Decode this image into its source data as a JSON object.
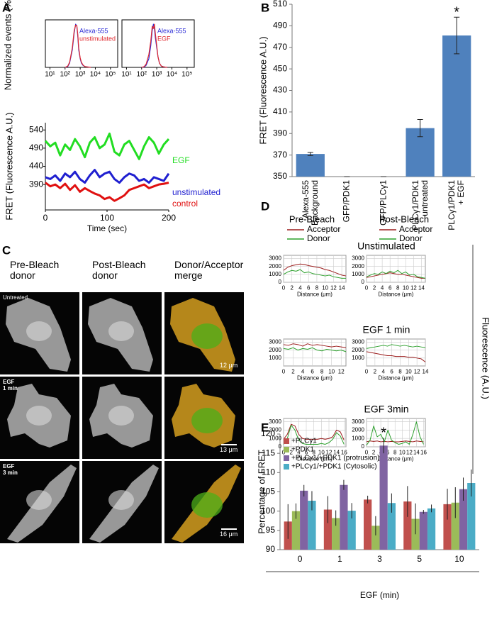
{
  "panel_labels": [
    "A",
    "B",
    "C",
    "D",
    "E"
  ],
  "panel_c": {
    "columns": [
      "Pre-Bleach\ndonor",
      "Post-Bleach\ndonor",
      "Donor/Acceptor\nmerge"
    ],
    "rows": [
      {
        "label": "Untreated",
        "scale_bar": "12 μm"
      },
      {
        "label": "EGF\n1 min",
        "scale_bar": "13 μm"
      },
      {
        "label": "EGF\n3 min",
        "scale_bar": "16 μm"
      }
    ]
  },
  "panel_d_ylabel": "Fluorescence (A.U.)",
  "chart_data": [
    {
      "type": "line",
      "ylabel": "Normalized events (%)",
      "xscale": "log",
      "x": [
        100,
        150,
        200,
        300,
        400,
        500,
        600,
        700,
        800,
        1000,
        1200,
        1500,
        2000,
        3000,
        5000
      ],
      "xlim": [
        5,
        300000
      ],
      "xticks": [
        {
          "value": 10,
          "label": "10¹"
        },
        {
          "value": 100,
          "label": "10²"
        },
        {
          "value": 1000,
          "label": "10³"
        },
        {
          "value": 10000,
          "label": "10⁴"
        },
        {
          "value": 100000,
          "label": "10⁵"
        }
      ],
      "ylim": [
        0,
        110
      ],
      "series": [
        {
          "name": "Alexa-555",
          "color": "#2b2bd6",
          "values": [
            0,
            2,
            10,
            40,
            80,
            100,
            95,
            70,
            40,
            20,
            10,
            5,
            2,
            1,
            0
          ]
        },
        {
          "name": "unstimulated",
          "color": "#e0282e",
          "values": [
            0,
            3,
            12,
            45,
            85,
            98,
            97,
            75,
            45,
            22,
            12,
            6,
            2,
            1,
            0
          ]
        }
      ]
    },
    {
      "type": "line",
      "xscale": "log",
      "x": [
        100,
        150,
        200,
        300,
        400,
        500,
        600,
        700,
        800,
        1000,
        1200,
        1500,
        2000,
        3000,
        5000
      ],
      "xlim": [
        5,
        300000
      ],
      "xticks": [
        {
          "value": 10,
          "label": "10¹"
        },
        {
          "value": 100,
          "label": "10²"
        },
        {
          "value": 1000,
          "label": "10³"
        },
        {
          "value": 10000,
          "label": "10⁴"
        },
        {
          "value": 100000,
          "label": "10⁵"
        }
      ],
      "ylim": [
        0,
        110
      ],
      "series": [
        {
          "name": "Alexa-555",
          "color": "#2b2bd6",
          "values": [
            0,
            1,
            5,
            20,
            50,
            85,
            100,
            90,
            70,
            45,
            25,
            10,
            3,
            1,
            0
          ]
        },
        {
          "name": "EGF",
          "color": "#e0282e",
          "values": [
            0,
            2,
            8,
            30,
            60,
            95,
            90,
            100,
            80,
            50,
            25,
            10,
            3,
            1,
            0
          ]
        }
      ]
    },
    {
      "type": "line",
      "xlabel": "Time (sec)",
      "ylabel": "FRET (Fluorescence A.U.)",
      "x": [
        0,
        8,
        16,
        24,
        32,
        40,
        48,
        56,
        64,
        72,
        80,
        88,
        96,
        104,
        112,
        120,
        128,
        136,
        144,
        152,
        160,
        168,
        176,
        184,
        192,
        200
      ],
      "xlim": [
        0,
        200
      ],
      "xticks": [
        0,
        100,
        200
      ],
      "ylim": [
        320,
        560
      ],
      "yticks": [
        390,
        440,
        490,
        540
      ],
      "series": [
        {
          "name": "EGF",
          "color": "#22dd22",
          "values": [
            510,
            495,
            505,
            470,
            500,
            485,
            515,
            495,
            465,
            505,
            520,
            490,
            500,
            530,
            480,
            470,
            500,
            510,
            485,
            460,
            495,
            520,
            505,
            475,
            500,
            515
          ]
        },
        {
          "name": "unstimulated",
          "color": "#1f1fd0",
          "values": [
            410,
            405,
            415,
            400,
            420,
            410,
            425,
            405,
            395,
            415,
            430,
            410,
            420,
            425,
            405,
            395,
            410,
            420,
            415,
            400,
            405,
            395,
            410,
            405,
            400,
            420
          ]
        },
        {
          "name": "control",
          "color": "#e01010",
          "values": [
            395,
            385,
            390,
            380,
            392,
            375,
            388,
            370,
            380,
            372,
            365,
            360,
            350,
            355,
            345,
            352,
            360,
            375,
            380,
            385,
            390,
            380,
            385,
            390,
            392,
            395
          ]
        }
      ]
    },
    {
      "type": "bar",
      "ylabel": "FRET (Fluorescence A.U.)",
      "categories": [
        "Alexa-555\nBackground",
        "GFP/PDK1",
        "GFP/PLCγ1",
        "PLCγ1/PDK1\nuntreated",
        "PLCγ1/PDK1\n+ EGF"
      ],
      "values": [
        371,
        350,
        350,
        395,
        481
      ],
      "errors": [
        1.5,
        0,
        0,
        8,
        17
      ],
      "color": "#4f81bd",
      "ylim": [
        350,
        510
      ],
      "yticks": [
        350,
        370,
        390,
        410,
        430,
        450,
        470,
        490,
        510
      ],
      "annotation": "*"
    },
    {
      "type": "line",
      "title": "Unstimulated",
      "legend_title": "Pre-Bleach",
      "xlabel": "Distance (μm)",
      "x": [
        0,
        1,
        2,
        3,
        4,
        5,
        6,
        7,
        8,
        9,
        10,
        11,
        12,
        13,
        14,
        15
      ],
      "xlim": [
        0,
        15
      ],
      "xticks": [
        0,
        2,
        4,
        6,
        8,
        10,
        12,
        14
      ],
      "ylim": [
        0,
        3400
      ],
      "yticks": [
        0,
        1000,
        2000,
        3000
      ],
      "grid": true,
      "series": [
        {
          "name": "Acceptor",
          "color": "#9b1c1c",
          "values": [
            1500,
            1900,
            2100,
            2200,
            2300,
            2250,
            2100,
            2000,
            1900,
            1800,
            1600,
            1500,
            1300,
            1100,
            900,
            800
          ]
        },
        {
          "name": "Donor",
          "color": "#2ca02c",
          "values": [
            1000,
            1300,
            1500,
            1400,
            1600,
            1200,
            1300,
            1100,
            1000,
            900,
            800,
            900,
            700,
            600,
            500,
            500
          ]
        }
      ]
    },
    {
      "type": "line",
      "legend_title": "Post-Bleach",
      "xlabel": "Distance (μm)",
      "x": [
        0,
        1,
        2,
        3,
        4,
        5,
        6,
        7,
        8,
        9,
        10,
        11,
        12,
        13,
        14,
        15
      ],
      "xlim": [
        0,
        15
      ],
      "xticks": [
        0,
        2,
        4,
        6,
        8,
        10,
        12,
        14
      ],
      "ylim": [
        0,
        3400
      ],
      "yticks": [
        0,
        1000,
        2000,
        3000
      ],
      "grid": true,
      "series": [
        {
          "name": "Acceptor",
          "color": "#9b1c1c",
          "values": [
            600,
            700,
            800,
            900,
            1000,
            1100,
            1200,
            1100,
            1000,
            1000,
            900,
            800,
            700,
            600,
            500,
            500
          ]
        },
        {
          "name": "Donor",
          "color": "#2ca02c",
          "values": [
            700,
            900,
            1100,
            1000,
            1300,
            1100,
            1400,
            1200,
            1500,
            1100,
            1300,
            900,
            1000,
            700,
            600,
            500
          ]
        }
      ]
    },
    {
      "type": "line",
      "title": "EGF 1 min",
      "xlabel": "Distance (μm)",
      "x": [
        0,
        1,
        2,
        3,
        4,
        5,
        6,
        7,
        8,
        9,
        10,
        11,
        12,
        13
      ],
      "xlim": [
        0,
        13
      ],
      "xticks": [
        0,
        2,
        4,
        6,
        8,
        10,
        12
      ],
      "ylim": [
        0,
        3400
      ],
      "yticks": [
        1000,
        2000,
        3000
      ],
      "grid": true,
      "series": [
        {
          "name": "Acceptor",
          "color": "#9b1c1c",
          "values": [
            2700,
            2600,
            2800,
            2700,
            2500,
            2800,
            2600,
            2700,
            2600,
            2500,
            2400,
            2500,
            2400,
            2300
          ]
        },
        {
          "name": "Donor",
          "color": "#2ca02c",
          "values": [
            2200,
            2100,
            2300,
            2000,
            2200,
            2100,
            2300,
            2000,
            1900,
            2100,
            2000,
            1900,
            2000,
            1800
          ]
        }
      ]
    },
    {
      "type": "line",
      "xlabel": "Distance (μm)",
      "x": [
        0,
        1,
        2,
        3,
        4,
        5,
        6,
        7,
        8,
        9,
        10,
        11,
        12,
        13,
        14
      ],
      "xlim": [
        0,
        14
      ],
      "xticks": [
        0,
        2,
        4,
        6,
        8,
        10,
        12,
        14
      ],
      "ylim": [
        0,
        3400
      ],
      "yticks": [
        1000,
        2000,
        3000
      ],
      "grid": true,
      "series": [
        {
          "name": "Acceptor",
          "color": "#9b1c1c",
          "values": [
            1800,
            1700,
            1600,
            1500,
            1400,
            1300,
            1300,
            1200,
            1200,
            1200,
            1100,
            1100,
            1000,
            900,
            500
          ]
        },
        {
          "name": "Donor",
          "color": "#2ca02c",
          "values": [
            2200,
            2300,
            2400,
            2500,
            2600,
            2500,
            2700,
            2600,
            2500,
            2600,
            2500,
            2400,
            2500,
            2400,
            2300
          ]
        }
      ]
    },
    {
      "type": "line",
      "title": "EGF 3min",
      "xlabel": "Distance (μm)",
      "x": [
        0,
        1,
        2,
        3,
        4,
        5,
        6,
        7,
        8,
        9,
        10,
        11,
        12,
        13,
        14,
        15,
        16
      ],
      "xlim": [
        0,
        16.5
      ],
      "xticks": [
        0,
        2,
        4,
        6,
        8,
        10,
        12,
        14,
        16
      ],
      "ylim": [
        0,
        3400
      ],
      "yticks": [
        0,
        1000,
        2000,
        3000
      ],
      "grid": true,
      "series": [
        {
          "name": "Acceptor",
          "color": "#9b1c1c",
          "values": [
            900,
            1500,
            2700,
            2500,
            1500,
            1000,
            900,
            900,
            900,
            900,
            1000,
            900,
            1000,
            1200,
            2000,
            1800,
            800
          ]
        },
        {
          "name": "Donor",
          "color": "#2ca02c",
          "values": [
            300,
            1000,
            2600,
            2000,
            800,
            400,
            300,
            300,
            300,
            300,
            400,
            300,
            500,
            900,
            1700,
            1300,
            300
          ]
        }
      ]
    },
    {
      "type": "line",
      "xlabel": "Distance (μm)",
      "x": [
        0,
        1,
        2,
        3,
        4,
        5,
        6,
        7,
        8,
        9,
        10,
        11,
        12,
        13,
        14,
        15,
        16
      ],
      "xlim": [
        0,
        16.5
      ],
      "xticks": [
        0,
        2,
        4,
        6,
        8,
        10,
        12,
        14,
        16
      ],
      "ylim": [
        0,
        3400
      ],
      "yticks": [
        0,
        1000,
        2000,
        3000
      ],
      "grid": true,
      "series": [
        {
          "name": "Acceptor",
          "color": "#9b1c1c",
          "values": [
            600,
            700,
            650,
            700,
            600,
            650,
            600,
            650,
            600,
            600,
            650,
            700,
            650,
            600,
            700,
            650,
            600
          ]
        },
        {
          "name": "Donor",
          "color": "#2ca02c",
          "values": [
            200,
            800,
            2500,
            1200,
            1500,
            600,
            2000,
            800,
            500,
            300,
            400,
            600,
            300,
            1500,
            3000,
            1200,
            300
          ]
        }
      ]
    },
    {
      "type": "bar",
      "xlabel": "EGF (min)",
      "ylabel": "Percentage of FRET",
      "categories": [
        "0",
        "1",
        "3",
        "5",
        "10"
      ],
      "ylim": [
        90,
        120
      ],
      "yticks": [
        90,
        95,
        100,
        105,
        110,
        115,
        120
      ],
      "annotation": "*",
      "series": [
        {
          "name": "+PLCγ1",
          "color": "#c0504d",
          "values": [
            97.3,
            100.4,
            103,
            102.5,
            101.8
          ],
          "errors": [
            4.5,
            3.5,
            1,
            4,
            4
          ]
        },
        {
          "name": "+PDK1",
          "color": "#9bbb59",
          "values": [
            100,
            98.2,
            96.2,
            98,
            102.2
          ],
          "errors": [
            2,
            2,
            2.5,
            4,
            4
          ]
        },
        {
          "name": "+PLCγ1/+PDK1 (protrusion)",
          "color": "#8064a2",
          "values": [
            105.3,
            106.8,
            117,
            99.8,
            105.7
          ],
          "errors": [
            1.5,
            1.3,
            2,
            0.5,
            3
          ]
        },
        {
          "name": "+PLCγ1/+PDK1 (Cytosolic)",
          "color": "#4bacc6",
          "values": [
            102.7,
            100.1,
            102.1,
            100.7,
            107.3
          ],
          "errors": [
            2.5,
            2,
            2.5,
            1,
            3.5
          ]
        }
      ]
    }
  ]
}
